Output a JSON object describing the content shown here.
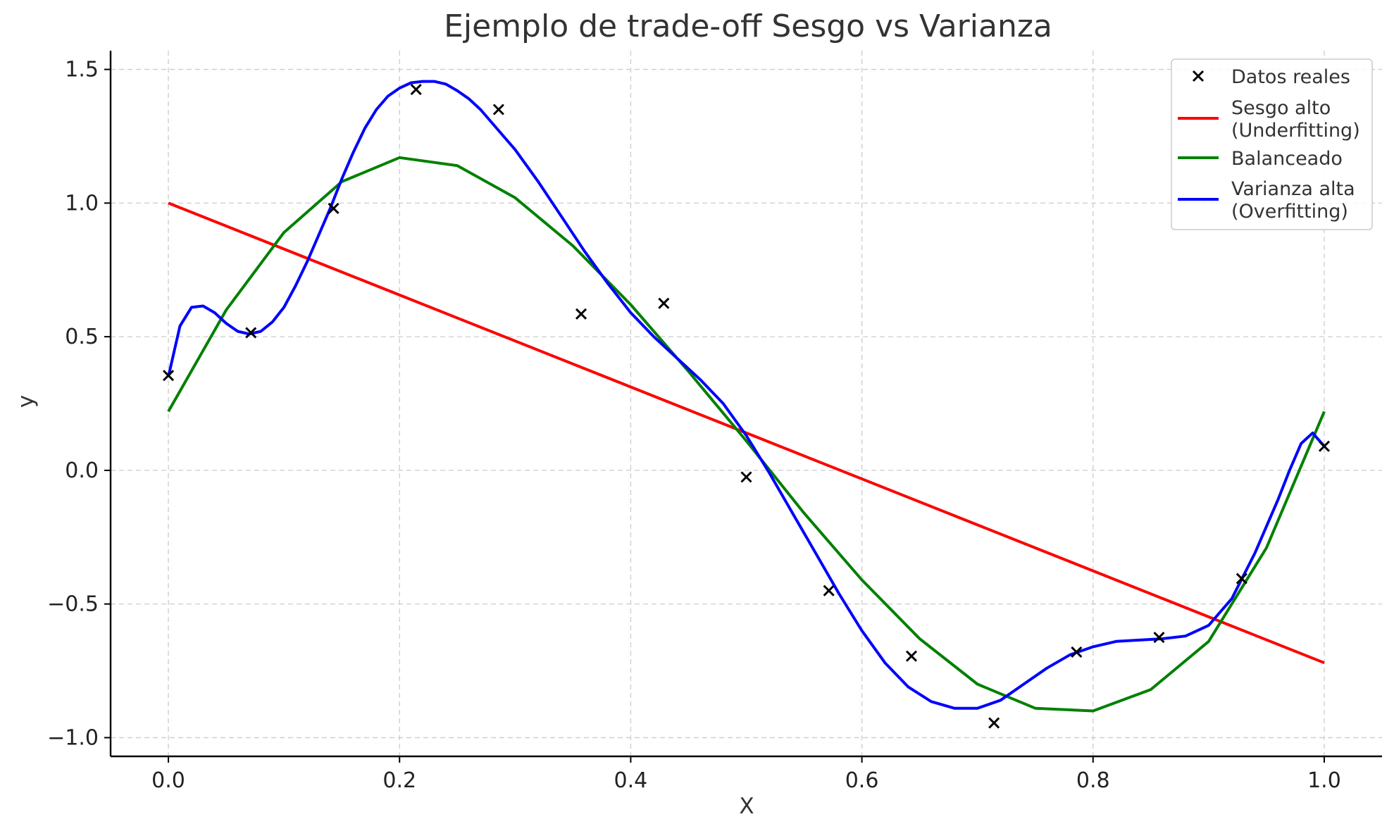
{
  "chart_data": {
    "type": "line",
    "title": "Ejemplo de trade-off Sesgo vs Varianza",
    "xlabel": "X",
    "ylabel": "y",
    "xlim": [
      -0.05,
      1.05
    ],
    "ylim": [
      -1.07,
      1.57
    ],
    "xticks": [
      0.0,
      0.2,
      0.4,
      0.6,
      0.8,
      1.0
    ],
    "xtick_labels": [
      "0.0",
      "0.2",
      "0.4",
      "0.6",
      "0.8",
      "1.0"
    ],
    "yticks": [
      -1.0,
      -0.5,
      0.0,
      0.5,
      1.0,
      1.5
    ],
    "ytick_labels": [
      "−1.0",
      "−0.5",
      "0.0",
      "0.5",
      "1.0",
      "1.5"
    ],
    "grid": true,
    "legend_position": "top-right",
    "series": [
      {
        "name": "Datos reales",
        "kind": "scatter",
        "marker": "x",
        "color": "#000000",
        "x": [
          0.0,
          0.0714,
          0.1429,
          0.2143,
          0.2857,
          0.3571,
          0.4286,
          0.5,
          0.5714,
          0.6429,
          0.7143,
          0.7857,
          0.8571,
          0.9286,
          1.0
        ],
        "y": [
          0.355,
          0.515,
          0.98,
          1.425,
          1.35,
          0.585,
          0.625,
          -0.025,
          -0.45,
          -0.695,
          -0.945,
          -0.68,
          -0.625,
          -0.405,
          0.09
        ]
      },
      {
        "name": "Sesgo alto\n(Underfitting)",
        "kind": "line",
        "color": "#ff0000",
        "x": [
          0.0,
          1.0
        ],
        "y": [
          1.0,
          -0.72
        ]
      },
      {
        "name": "Balanceado",
        "kind": "line",
        "color": "#008000",
        "x": [
          0.0,
          0.05,
          0.1,
          0.15,
          0.2,
          0.25,
          0.3,
          0.35,
          0.4,
          0.45,
          0.5,
          0.55,
          0.6,
          0.65,
          0.7,
          0.75,
          0.8,
          0.85,
          0.9,
          0.95,
          1.0
        ],
        "y": [
          0.22,
          0.6,
          0.89,
          1.08,
          1.17,
          1.14,
          1.02,
          0.84,
          0.62,
          0.37,
          0.11,
          -0.16,
          -0.41,
          -0.63,
          -0.8,
          -0.89,
          -0.9,
          -0.82,
          -0.64,
          -0.29,
          0.22
        ]
      },
      {
        "name": "Varianza alta\n(Overfitting)",
        "kind": "line",
        "color": "#0000ff",
        "x": [
          0.0,
          0.01,
          0.02,
          0.03,
          0.04,
          0.05,
          0.06,
          0.07,
          0.08,
          0.09,
          0.1,
          0.11,
          0.12,
          0.13,
          0.14,
          0.15,
          0.16,
          0.17,
          0.18,
          0.19,
          0.2,
          0.21,
          0.22,
          0.23,
          0.24,
          0.25,
          0.26,
          0.27,
          0.28,
          0.29,
          0.3,
          0.32,
          0.34,
          0.36,
          0.38,
          0.4,
          0.42,
          0.44,
          0.46,
          0.48,
          0.5,
          0.52,
          0.54,
          0.56,
          0.58,
          0.6,
          0.62,
          0.64,
          0.66,
          0.68,
          0.7,
          0.72,
          0.74,
          0.76,
          0.78,
          0.8,
          0.82,
          0.84,
          0.86,
          0.88,
          0.9,
          0.92,
          0.94,
          0.96,
          0.97,
          0.98,
          0.99,
          1.0
        ],
        "y": [
          0.35,
          0.54,
          0.61,
          0.615,
          0.59,
          0.55,
          0.52,
          0.51,
          0.52,
          0.555,
          0.61,
          0.69,
          0.78,
          0.88,
          0.98,
          1.09,
          1.19,
          1.28,
          1.35,
          1.4,
          1.43,
          1.45,
          1.455,
          1.455,
          1.445,
          1.42,
          1.39,
          1.35,
          1.3,
          1.25,
          1.2,
          1.08,
          0.95,
          0.82,
          0.7,
          0.59,
          0.5,
          0.42,
          0.34,
          0.25,
          0.13,
          -0.01,
          -0.16,
          -0.31,
          -0.46,
          -0.6,
          -0.72,
          -0.81,
          -0.865,
          -0.89,
          -0.89,
          -0.86,
          -0.8,
          -0.74,
          -0.69,
          -0.66,
          -0.64,
          -0.635,
          -0.63,
          -0.62,
          -0.58,
          -0.48,
          -0.31,
          -0.11,
          0.0,
          0.1,
          0.14,
          0.09
        ]
      }
    ]
  }
}
